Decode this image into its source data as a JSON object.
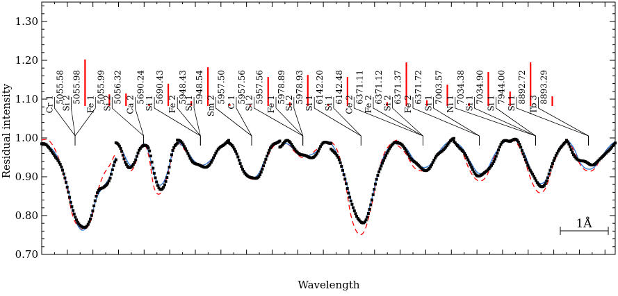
{
  "chart_data": {
    "type": "line",
    "xlabel": "Wavelength",
    "ylabel": "Residual intensity",
    "ylim": [
      0.7,
      1.35
    ],
    "yticks": [
      0.7,
      0.8,
      0.9,
      1.0,
      1.1,
      1.2,
      1.3
    ],
    "ytick_labels": [
      "0.70",
      "0.80",
      "0.90",
      "1.00",
      "1.10",
      "1.20",
      "1.30"
    ],
    "x_axis_ticks_labeled": false,
    "scale_bar_label": "1Å",
    "series": [
      {
        "name": "",
        "style": "black-square-markers",
        "color": "#000000"
      },
      {
        "name": "",
        "style": "solid",
        "color": "#3a7fd8"
      },
      {
        "name": "",
        "style": "dashed",
        "color": "#ff0000"
      }
    ],
    "segments": [
      {
        "id": "s1",
        "center_wl": 5056.0,
        "x_range": [
          0.0,
          2.9
        ],
        "points_y": [
          0.985,
          0.975,
          0.96,
          0.93,
          0.88,
          0.82,
          0.775,
          0.77,
          0.8,
          0.855,
          0.875,
          0.895,
          0.94
        ],
        "fit_y": [
          0.985,
          0.98,
          0.965,
          0.935,
          0.885,
          0.815,
          0.77,
          0.765,
          0.8,
          0.85,
          0.875,
          0.9,
          0.95
        ],
        "model_y": [
          0.995,
          0.995,
          0.975,
          0.935,
          0.875,
          0.8,
          0.77,
          0.765,
          0.79,
          0.86,
          0.905,
          0.93,
          0.96
        ]
      },
      {
        "id": "s2",
        "center_wl": 5690.3,
        "x_range": [
          2.9,
          5.3
        ],
        "points_y": [
          0.985,
          0.97,
          0.94,
          0.925,
          0.935,
          0.97,
          0.985,
          0.97,
          0.91,
          0.875,
          0.875,
          0.905,
          0.965,
          0.99
        ],
        "fit_y": [
          0.985,
          0.975,
          0.95,
          0.93,
          0.94,
          0.97,
          0.985,
          0.96,
          0.91,
          0.88,
          0.885,
          0.915,
          0.965,
          0.985
        ],
        "model_y": [
          0.99,
          0.97,
          0.935,
          0.915,
          0.93,
          0.97,
          0.985,
          0.95,
          0.875,
          0.855,
          0.87,
          0.91,
          0.96,
          0.99
        ]
      },
      {
        "id": "s3",
        "center_wl": 5948.5,
        "x_range": [
          5.3,
          7.3
        ],
        "points_y": [
          0.995,
          0.97,
          0.935,
          0.925,
          0.94,
          0.975,
          0.995
        ],
        "fit_y": [
          0.99,
          0.97,
          0.94,
          0.93,
          0.945,
          0.975,
          0.99
        ],
        "model_y": [
          0.99,
          0.965,
          0.935,
          0.93,
          0.945,
          0.975,
          0.99
        ]
      },
      {
        "id": "s4",
        "center_wl": 5957.5,
        "x_range": [
          7.3,
          9.3
        ],
        "points_y": [
          0.99,
          0.96,
          0.92,
          0.895,
          0.9,
          0.94,
          0.98,
          0.995
        ],
        "fit_y": [
          0.99,
          0.96,
          0.92,
          0.9,
          0.905,
          0.945,
          0.98,
          0.995
        ],
        "model_y": [
          0.99,
          0.96,
          0.915,
          0.895,
          0.9,
          0.94,
          0.975,
          0.99
        ]
      },
      {
        "id": "s5",
        "center_wl": 5978.9,
        "x_range": [
          9.3,
          11.3
        ],
        "points_y": [
          0.98,
          0.99,
          0.975,
          0.955,
          0.95,
          0.96,
          0.985,
          0.99
        ],
        "fit_y": [
          0.98,
          0.985,
          0.97,
          0.955,
          0.955,
          0.965,
          0.985,
          0.99
        ],
        "model_y": [
          0.975,
          0.985,
          0.965,
          0.95,
          0.955,
          0.97,
          0.985,
          0.99
        ]
      },
      {
        "id": "s6",
        "center_wl": 6142.3,
        "x_range": [
          11.3,
          13.9
        ],
        "points_y": [
          0.975,
          0.95,
          0.9,
          0.84,
          0.79,
          0.785,
          0.83,
          0.9,
          0.95,
          0.975,
          0.99
        ],
        "fit_y": [
          0.985,
          0.955,
          0.905,
          0.84,
          0.79,
          0.785,
          0.835,
          0.905,
          0.955,
          0.98,
          0.99
        ],
        "model_y": [
          0.99,
          0.965,
          0.9,
          0.8,
          0.755,
          0.76,
          0.82,
          0.905,
          0.96,
          0.985,
          0.995
        ]
      },
      {
        "id": "s7",
        "center_wl": 6371.3,
        "x_range": [
          13.9,
          16.1
        ],
        "points_y": [
          0.985,
          0.97,
          0.94,
          0.92,
          0.925,
          0.955,
          0.98,
          0.995
        ],
        "fit_y": [
          0.985,
          0.975,
          0.945,
          0.925,
          0.93,
          0.96,
          0.985,
          0.995
        ],
        "model_y": [
          0.98,
          0.96,
          0.925,
          0.915,
          0.925,
          0.96,
          0.985,
          0.995
        ]
      },
      {
        "id": "s8",
        "center_wl": 7003.6,
        "x_range": [
          16.1,
          18.3
        ],
        "points_y": [
          0.99,
          0.97,
          0.93,
          0.905,
          0.91,
          0.945,
          0.985,
          0.995
        ],
        "fit_y": [
          0.99,
          0.975,
          0.94,
          0.91,
          0.915,
          0.955,
          0.985,
          0.995
        ],
        "model_y": [
          0.99,
          0.965,
          0.915,
          0.89,
          0.9,
          0.95,
          0.985,
          0.995
        ]
      },
      {
        "id": "s9",
        "center_wl": 7034.6,
        "x_range": [
          18.3,
          20.5
        ],
        "points_y": [
          0.995,
          0.99,
          0.955,
          0.91,
          0.88,
          0.885,
          0.93,
          0.975,
          0.99
        ],
        "fit_y": [
          0.995,
          0.99,
          0.96,
          0.915,
          0.885,
          0.89,
          0.935,
          0.975,
          0.99
        ],
        "model_y": [
          0.995,
          0.985,
          0.945,
          0.89,
          0.86,
          0.87,
          0.925,
          0.97,
          0.99
        ]
      },
      {
        "id": "s10",
        "center_wl": 8892.7,
        "x_range": [
          20.5,
          22.4
        ],
        "points_y": [
          0.99,
          0.96,
          0.94,
          0.935,
          0.935,
          0.945,
          0.97,
          0.985
        ],
        "fit_y": [
          0.995,
          0.975,
          0.935,
          0.92,
          0.925,
          0.95,
          0.975,
          0.99
        ],
        "model_y": [
          0.995,
          0.97,
          0.93,
          0.915,
          0.92,
          0.95,
          0.975,
          0.99
        ]
      }
    ],
    "annotations": [
      {
        "label": "Cr 1",
        "wavelength": "5055.58",
        "x": 0.5,
        "depth": 0.0
      },
      {
        "label": "Si 2",
        "wavelength": "5055.98",
        "x": 1.15,
        "depth": 0.048
      },
      {
        "label": "Fe 1",
        "wavelength": "5055.99",
        "x": 2.1,
        "depth": 0.012
      },
      {
        "label": "Si 2",
        "wavelength": "5056.32",
        "x": 2.75,
        "depth": 0.013
      },
      {
        "label": "Ca 2",
        "wavelength": "5690.24",
        "x": 3.65,
        "depth": 0.002
      },
      {
        "label": "Si 1",
        "wavelength": "5690.43",
        "x": 4.4,
        "depth": 0.023
      },
      {
        "label": "Fe 2",
        "wavelength": "5948.43",
        "x": 5.3,
        "depth": 0.005
      },
      {
        "label": "Si 1",
        "wavelength": "5948.54",
        "x": 5.95,
        "depth": 0.04
      },
      {
        "label": "Sm 2",
        "wavelength": "5957.50",
        "x": 6.8,
        "depth": 0.002
      },
      {
        "label": "C 1",
        "wavelength": "5957.56",
        "x": 7.6,
        "depth": 0.001
      },
      {
        "label": "Si 2",
        "wavelength": "5957.56",
        "x": 8.3,
        "depth": 0.03
      },
      {
        "label": "Fe 1",
        "wavelength": "5978.89",
        "x": 9.15,
        "depth": 0.004
      },
      {
        "label": "Si 2",
        "wavelength": "5978.93",
        "x": 9.85,
        "depth": 0.032
      },
      {
        "label": "Si 1",
        "wavelength": "6142.20",
        "x": 10.65,
        "depth": 0.002
      },
      {
        "label": "Si 1",
        "wavelength": "6142.48",
        "x": 11.4,
        "depth": 0.03
      },
      {
        "label": "Ce 2",
        "wavelength": "6371.11",
        "x": 12.2,
        "depth": 0.0
      },
      {
        "label": "Fe 2",
        "wavelength": "6371.12",
        "x": 12.95,
        "depth": 0.004
      },
      {
        "label": "Si 2",
        "wavelength": "6371.37",
        "x": 13.7,
        "depth": 0.045
      },
      {
        "label": "Fe 2",
        "wavelength": "6371.72",
        "x": 14.5,
        "depth": 0.006
      },
      {
        "label": "Si 1",
        "wavelength": "7003.57",
        "x": 15.3,
        "depth": 0.022
      },
      {
        "label": "Ni 1",
        "wavelength": "7034.38",
        "x": 16.15,
        "depth": 0.003
      },
      {
        "label": "Si 1",
        "wavelength": "7034.90",
        "x": 16.9,
        "depth": 0.035
      },
      {
        "label": "Si 1",
        "wavelength": "7944.00",
        "x": 17.75,
        "depth": 0.015
      },
      {
        "label": "Si 1",
        "wavelength": "8892.72",
        "x": 18.55,
        "depth": 0.045
      },
      {
        "label": "Tb 3",
        "wavelength": "8893.29",
        "x": 19.4,
        "depth": 0.01
      }
    ],
    "grid": false,
    "legend": "none"
  }
}
